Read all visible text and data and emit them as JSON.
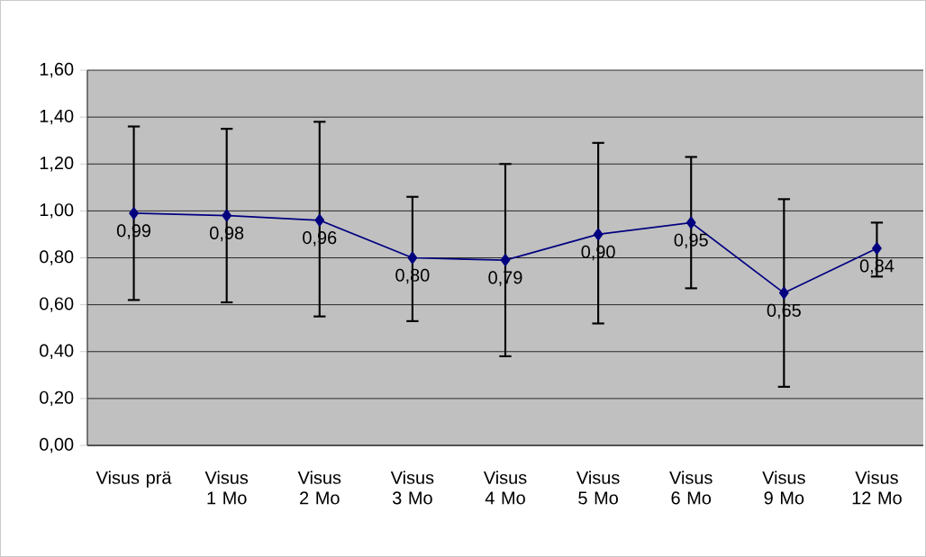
{
  "chart_data": {
    "type": "line",
    "categories": [
      "Visus prä",
      "Visus 1 Mo",
      "Visus 2 Mo",
      "Visus 3 Mo",
      "Visus 4 Mo",
      "Visus 5 Mo",
      "Visus 6 Mo",
      "Visus 9 Mo",
      "Visus 12 Mo"
    ],
    "series": [
      {
        "color": "#000080",
        "values": [
          0.99,
          0.98,
          0.96,
          0.8,
          0.79,
          0.9,
          0.95,
          0.65,
          0.84
        ],
        "errors": [
          [
            0.62,
            1.36
          ],
          [
            0.61,
            1.35
          ],
          [
            0.55,
            1.38
          ],
          [
            0.53,
            1.06
          ],
          [
            0.38,
            1.2
          ],
          [
            0.52,
            1.29
          ],
          [
            0.67,
            1.23
          ],
          [
            0.25,
            1.05
          ],
          [
            0.72,
            0.95
          ]
        ],
        "value_labels": [
          "0,99",
          "0,98",
          "0,96",
          "0,80",
          "0,79",
          "0,90",
          "0,95",
          "0,65",
          "0,84"
        ]
      }
    ],
    "ylim": [
      0,
      1.6
    ],
    "yticks": [
      {
        "value": 0,
        "label": "0,00"
      },
      {
        "value": 0.2,
        "label": "0,20"
      },
      {
        "value": 0.4,
        "label": "0,40"
      },
      {
        "value": 0.6,
        "label": "0,60"
      },
      {
        "value": 0.8,
        "label": "0,80"
      },
      {
        "value": 1.0,
        "label": "1,00"
      },
      {
        "value": 1.2,
        "label": "1,20"
      },
      {
        "value": 1.4,
        "label": "1,40"
      },
      {
        "value": 1.6,
        "label": "1,60"
      }
    ],
    "grid": "y",
    "marker": "diamond",
    "line_style": "solid"
  }
}
